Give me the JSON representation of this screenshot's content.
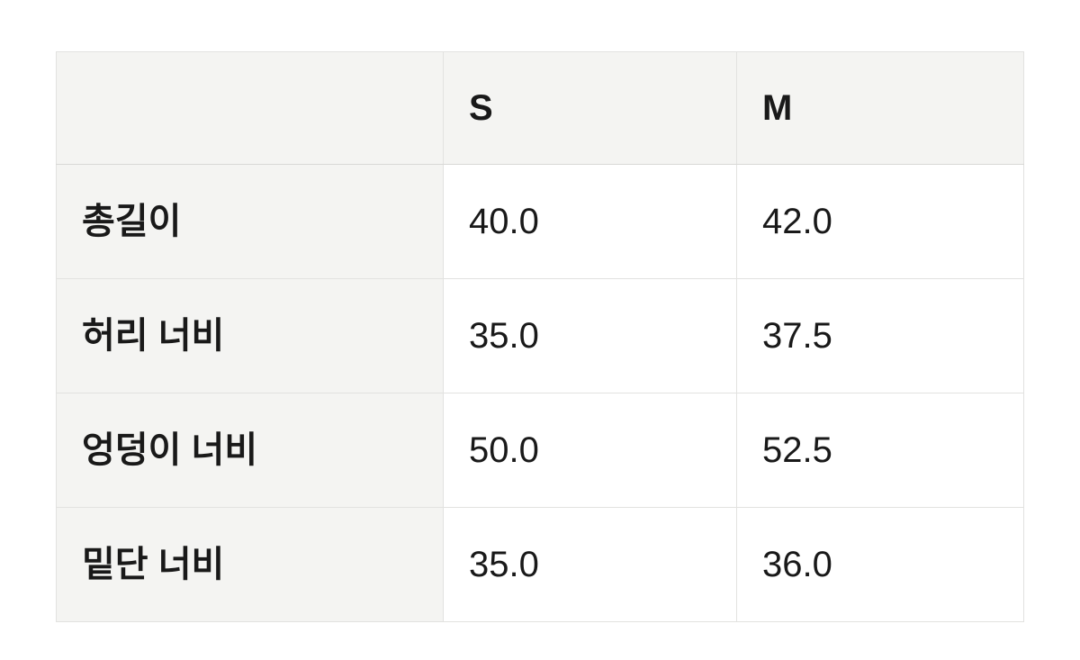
{
  "colors": {
    "page_background": "#ffffff",
    "header_cell_background": "#f4f4f2",
    "value_cell_background": "#ffffff",
    "border": "#e2e2e0",
    "header_bottom_border": "#d8d8d6",
    "text": "#191919"
  },
  "table": {
    "headers": [
      "",
      "S",
      "M"
    ],
    "rows": [
      {
        "label": "총길이",
        "values": [
          "40.0",
          "42.0"
        ]
      },
      {
        "label": "허리 너비",
        "values": [
          "35.0",
          "37.5"
        ]
      },
      {
        "label": "엉덩이 너비",
        "values": [
          "50.0",
          "52.5"
        ]
      },
      {
        "label": "밑단 너비",
        "values": [
          "35.0",
          "36.0"
        ]
      }
    ]
  },
  "chart_data": {
    "type": "table",
    "columns": [
      "",
      "S",
      "M"
    ],
    "rows": [
      [
        "총길이",
        "40.0",
        "42.0"
      ],
      [
        "허리 너비",
        "35.0",
        "37.5"
      ],
      [
        "엉덩이 너비",
        "50.0",
        "52.5"
      ],
      [
        "밑단 너비",
        "35.0",
        "36.0"
      ]
    ]
  }
}
